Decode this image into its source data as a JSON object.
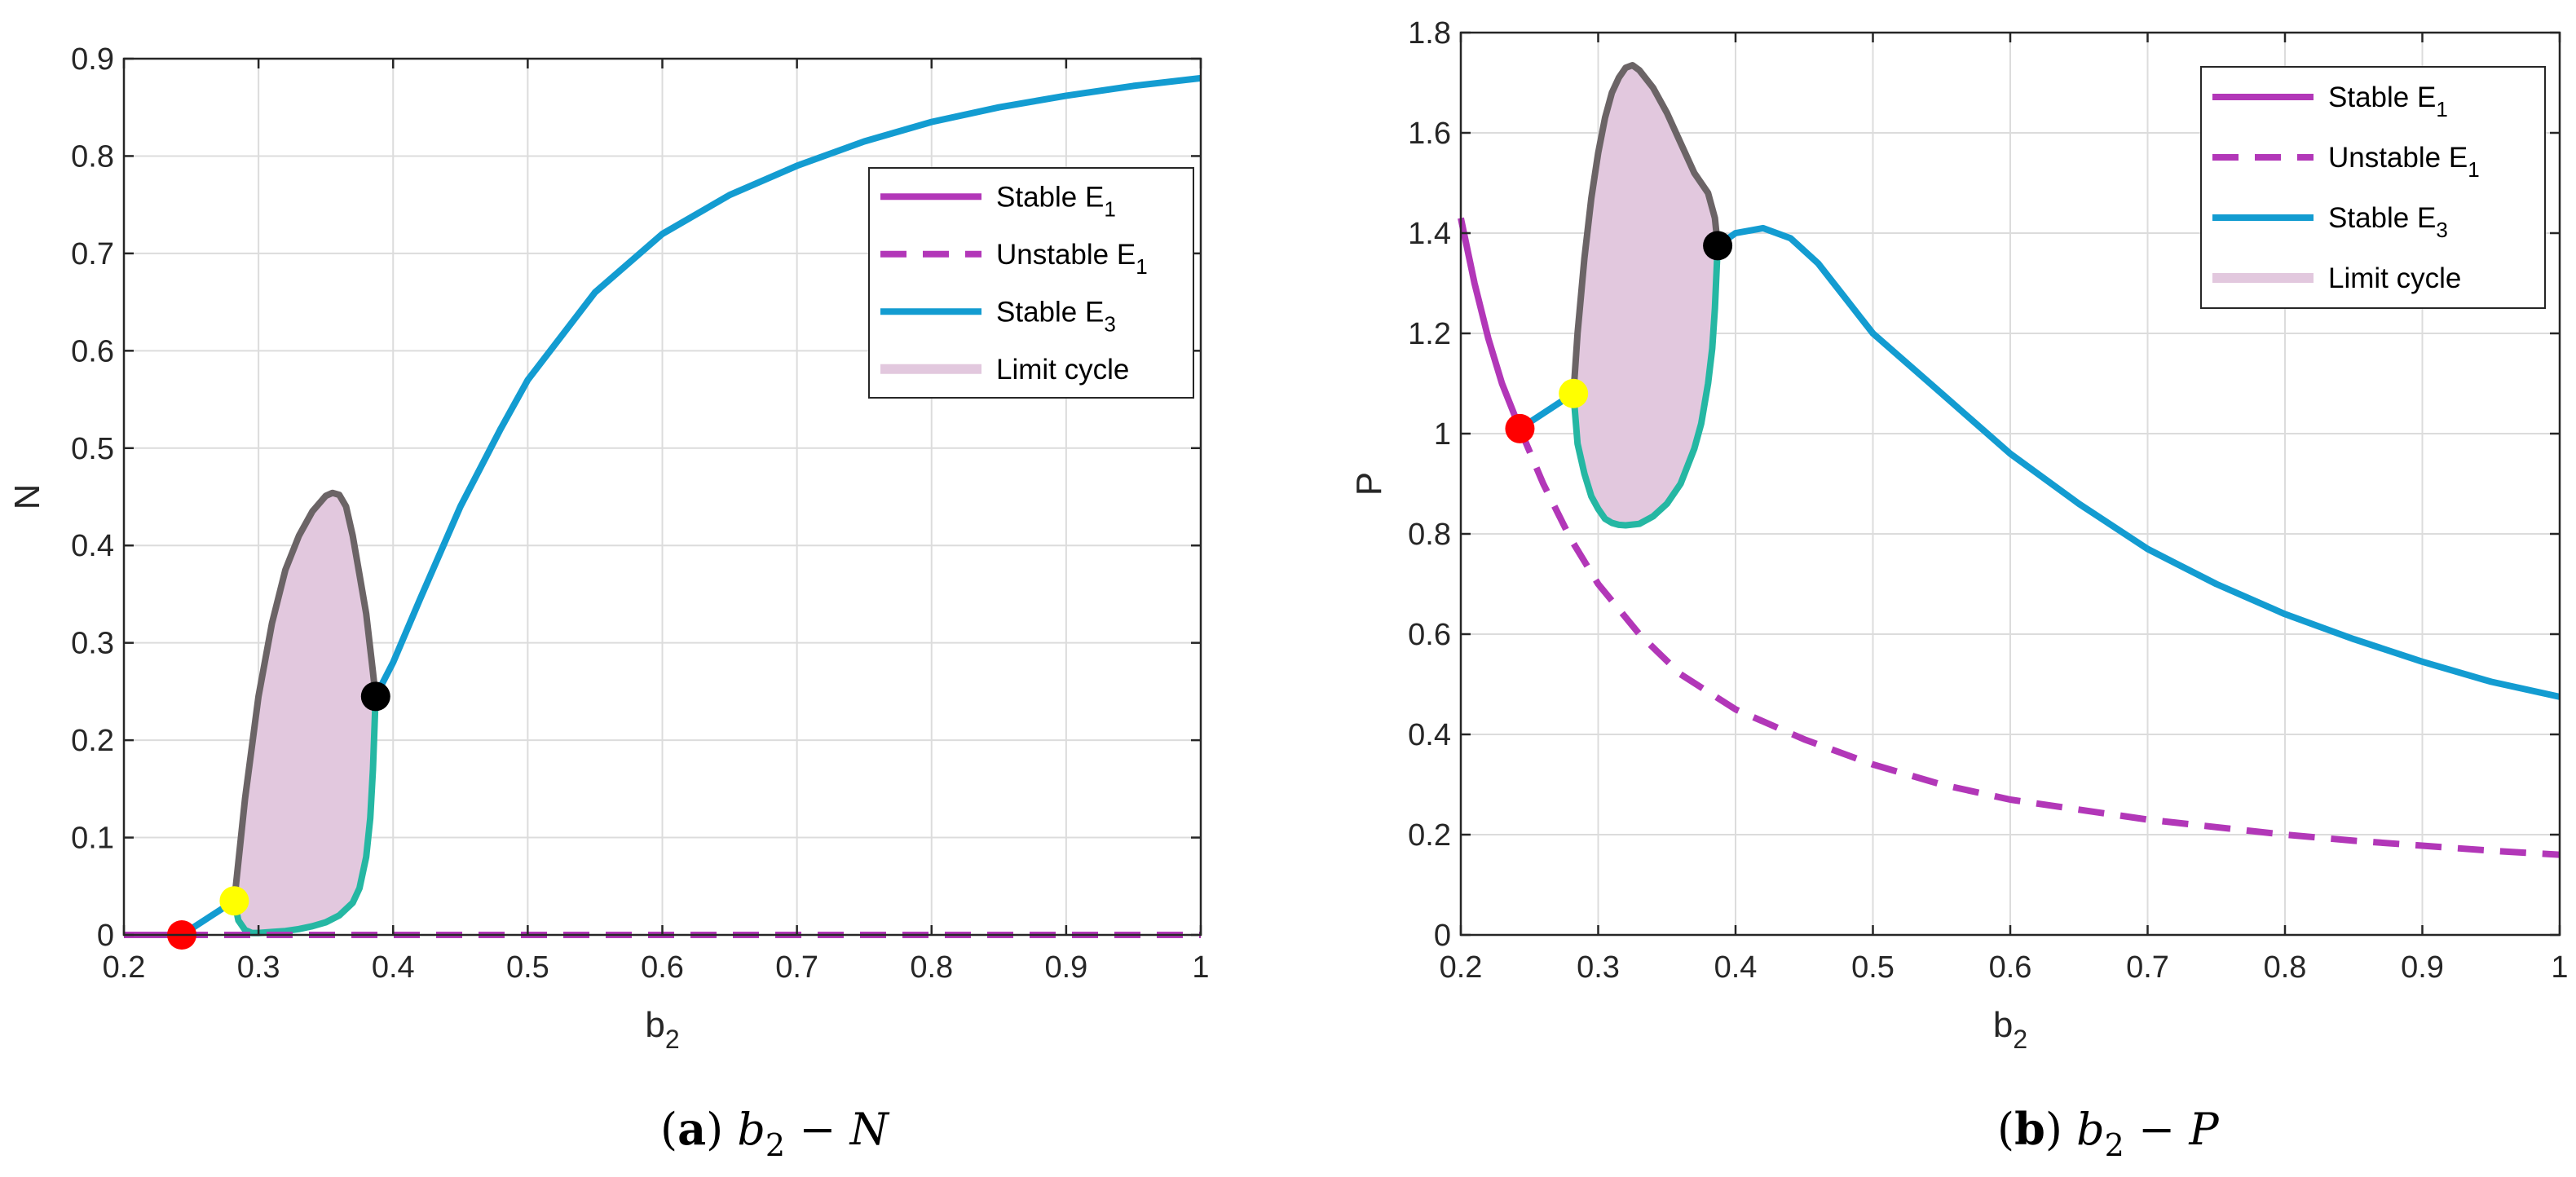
{
  "colors": {
    "stable_e1": "#b237b8",
    "unstable_e1": "#b237b8",
    "stable_e3": "#139cd1",
    "limit_cycle_fill": "#e2c8de",
    "limit_cycle_upper": "#6b6466",
    "limit_cycle_lower": "#25b7a3",
    "grid": "#dcdcdc",
    "axis": "#262626",
    "point_red": "#ff0000",
    "point_yellow": "#ffff00",
    "point_black": "#000000"
  },
  "chart_data": [
    {
      "id": "a",
      "type": "line",
      "caption": {
        "label": "(a)",
        "var": "b",
        "sub": "2",
        "rest": " − N"
      },
      "xlabel": "b",
      "xlabel_sub": "2",
      "ylabel": "N",
      "xlim": [
        0.2,
        1.0
      ],
      "ylim": [
        0,
        0.9
      ],
      "xticks": [
        0.2,
        0.3,
        0.4,
        0.5,
        0.6,
        0.7,
        0.8,
        0.9,
        1.0
      ],
      "xtick_labels": [
        "0.2",
        "0.3",
        "0.4",
        "0.5",
        "0.6",
        "0.7",
        "0.8",
        "0.9",
        "1"
      ],
      "yticks": [
        0,
        0.1,
        0.2,
        0.3,
        0.4,
        0.5,
        0.6,
        0.7,
        0.8,
        0.9
      ],
      "ytick_labels": [
        "0",
        "0.1",
        "0.2",
        "0.3",
        "0.4",
        "0.5",
        "0.6",
        "0.7",
        "0.8",
        "0.9"
      ],
      "grid": true,
      "legend": {
        "position": "right-middle",
        "entries": [
          {
            "label": "Stable E",
            "sub": "1",
            "style": "stable_e1"
          },
          {
            "label": "Unstable E",
            "sub": "1",
            "style": "unstable_e1"
          },
          {
            "label": "Stable E",
            "sub": "3",
            "style": "stable_e3"
          },
          {
            "label": "Limit cycle",
            "sub": "",
            "style": "limit_cycle"
          }
        ]
      },
      "series": [
        {
          "name": "Stable E1",
          "style": "stable_e1",
          "x": [
            0.2,
            0.243
          ],
          "y": [
            0,
            0
          ]
        },
        {
          "name": "Unstable E1",
          "style": "unstable_e1",
          "x": [
            0.243,
            1.0
          ],
          "y": [
            0,
            0
          ]
        },
        {
          "name": "Stable E3 (low)",
          "style": "stable_e3",
          "x": [
            0.243,
            0.282
          ],
          "y": [
            0,
            0.035
          ]
        },
        {
          "name": "Stable E3 (high)",
          "style": "stable_e3",
          "x": [
            0.387,
            0.4,
            0.42,
            0.45,
            0.48,
            0.5,
            0.55,
            0.6,
            0.65,
            0.7,
            0.75,
            0.8,
            0.85,
            0.9,
            0.95,
            1.0
          ],
          "y": [
            0.245,
            0.28,
            0.345,
            0.44,
            0.52,
            0.57,
            0.66,
            0.72,
            0.76,
            0.79,
            0.815,
            0.835,
            0.85,
            0.862,
            0.872,
            0.88
          ]
        }
      ],
      "limit_cycle": {
        "upper": {
          "x": [
            0.282,
            0.29,
            0.3,
            0.31,
            0.32,
            0.33,
            0.34,
            0.35,
            0.355,
            0.36,
            0.365,
            0.37,
            0.375,
            0.38,
            0.385,
            0.387
          ],
          "y": [
            0.035,
            0.14,
            0.245,
            0.32,
            0.375,
            0.41,
            0.435,
            0.451,
            0.454,
            0.452,
            0.44,
            0.41,
            0.37,
            0.33,
            0.27,
            0.245
          ]
        },
        "lower": {
          "x": [
            0.282,
            0.285,
            0.29,
            0.295,
            0.3,
            0.31,
            0.32,
            0.33,
            0.34,
            0.35,
            0.36,
            0.37,
            0.375,
            0.38,
            0.383,
            0.385,
            0.387
          ],
          "y": [
            0.035,
            0.015,
            0.005,
            0.002,
            0.002,
            0.003,
            0.004,
            0.006,
            0.009,
            0.013,
            0.02,
            0.033,
            0.048,
            0.08,
            0.12,
            0.17,
            0.245
          ]
        }
      },
      "points": [
        {
          "name": "red-point",
          "x": 0.243,
          "y": 0.0,
          "color": "point_red"
        },
        {
          "name": "yellow-point",
          "x": 0.282,
          "y": 0.035,
          "color": "point_yellow"
        },
        {
          "name": "black-point",
          "x": 0.387,
          "y": 0.245,
          "color": "point_black"
        }
      ]
    },
    {
      "id": "b",
      "type": "line",
      "caption": {
        "label": "(b)",
        "var": "b",
        "sub": "2",
        "rest": " − P"
      },
      "xlabel": "b",
      "xlabel_sub": "2",
      "ylabel": "P",
      "xlim": [
        0.2,
        1.0
      ],
      "ylim": [
        0,
        1.8
      ],
      "xticks": [
        0.2,
        0.3,
        0.4,
        0.5,
        0.6,
        0.7,
        0.8,
        0.9,
        1.0
      ],
      "xtick_labels": [
        "0.2",
        "0.3",
        "0.4",
        "0.5",
        "0.6",
        "0.7",
        "0.8",
        "0.9",
        "1"
      ],
      "yticks": [
        0,
        0.2,
        0.4,
        0.6,
        0.8,
        1.0,
        1.2,
        1.4,
        1.6,
        1.8
      ],
      "ytick_labels": [
        "0",
        "0.2",
        "0.4",
        "0.6",
        "0.8",
        "1",
        "1.2",
        "1.4",
        "1.6",
        "1.8"
      ],
      "grid": true,
      "legend": {
        "position": "top-right",
        "entries": [
          {
            "label": "Stable E",
            "sub": "1",
            "style": "stable_e1"
          },
          {
            "label": "Unstable E",
            "sub": "1",
            "style": "unstable_e1"
          },
          {
            "label": "Stable E",
            "sub": "3",
            "style": "stable_e3"
          },
          {
            "label": "Limit cycle",
            "sub": "",
            "style": "limit_cycle"
          }
        ]
      },
      "series": [
        {
          "name": "Stable E1",
          "style": "stable_e1",
          "x": [
            0.2,
            0.21,
            0.22,
            0.23,
            0.243
          ],
          "y": [
            1.43,
            1.3,
            1.19,
            1.1,
            1.01
          ]
        },
        {
          "name": "Unstable E1",
          "style": "unstable_e1",
          "x": [
            0.243,
            0.26,
            0.28,
            0.3,
            0.33,
            0.36,
            0.4,
            0.45,
            0.5,
            0.55,
            0.6,
            0.65,
            0.7,
            0.75,
            0.8,
            0.85,
            0.9,
            0.95,
            1.0
          ],
          "y": [
            1.01,
            0.9,
            0.79,
            0.7,
            0.6,
            0.52,
            0.45,
            0.39,
            0.34,
            0.3,
            0.27,
            0.25,
            0.23,
            0.215,
            0.2,
            0.188,
            0.178,
            0.168,
            0.16
          ]
        },
        {
          "name": "Stable E3 (low)",
          "style": "stable_e3",
          "x": [
            0.243,
            0.282
          ],
          "y": [
            1.01,
            1.08
          ]
        },
        {
          "name": "Stable E3 (high)",
          "style": "stable_e3",
          "x": [
            0.387,
            0.4,
            0.42,
            0.44,
            0.46,
            0.48,
            0.5,
            0.55,
            0.6,
            0.65,
            0.7,
            0.75,
            0.8,
            0.85,
            0.9,
            0.95,
            1.0
          ],
          "y": [
            1.375,
            1.4,
            1.41,
            1.39,
            1.34,
            1.27,
            1.2,
            1.08,
            0.96,
            0.86,
            0.77,
            0.7,
            0.64,
            0.59,
            0.545,
            0.505,
            0.475
          ]
        }
      ],
      "limit_cycle": {
        "upper": {
          "x": [
            0.282,
            0.285,
            0.29,
            0.295,
            0.3,
            0.305,
            0.31,
            0.315,
            0.32,
            0.325,
            0.33,
            0.34,
            0.35,
            0.36,
            0.37,
            0.38,
            0.385,
            0.387
          ],
          "y": [
            1.08,
            1.2,
            1.35,
            1.47,
            1.56,
            1.63,
            1.68,
            1.71,
            1.73,
            1.735,
            1.725,
            1.69,
            1.64,
            1.58,
            1.52,
            1.48,
            1.43,
            1.375
          ]
        },
        "lower": {
          "x": [
            0.282,
            0.285,
            0.29,
            0.295,
            0.3,
            0.305,
            0.31,
            0.315,
            0.32,
            0.33,
            0.34,
            0.35,
            0.36,
            0.37,
            0.375,
            0.38,
            0.383,
            0.385,
            0.387
          ],
          "y": [
            1.08,
            0.98,
            0.92,
            0.875,
            0.85,
            0.83,
            0.822,
            0.818,
            0.817,
            0.82,
            0.835,
            0.86,
            0.9,
            0.97,
            1.02,
            1.1,
            1.17,
            1.25,
            1.375
          ]
        }
      },
      "points": [
        {
          "name": "red-point",
          "x": 0.243,
          "y": 1.01,
          "color": "point_red"
        },
        {
          "name": "yellow-point",
          "x": 0.282,
          "y": 1.08,
          "color": "point_yellow"
        },
        {
          "name": "black-point",
          "x": 0.387,
          "y": 1.375,
          "color": "point_black"
        }
      ]
    }
  ]
}
